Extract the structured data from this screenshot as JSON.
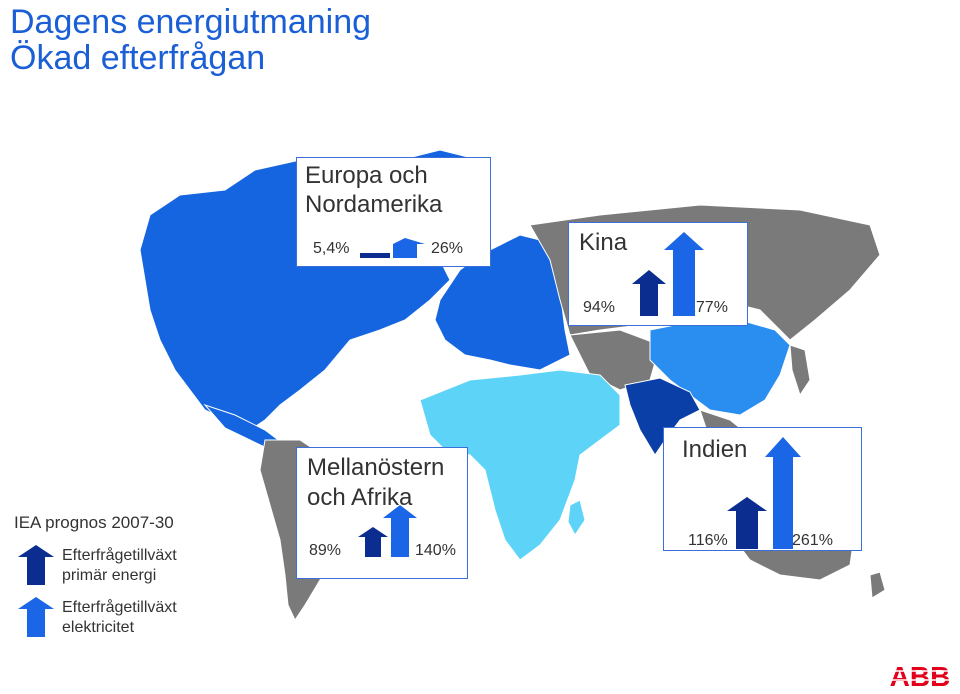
{
  "header": {
    "title_line1": "Dagens energiutmaning",
    "title_line2": "Ökad efterfrågan"
  },
  "colors": {
    "primary_energy": "#0a2d8f",
    "electricity": "#1a66e6",
    "europe_na_region": "#1565e0",
    "china_region": "#2a8df0",
    "india_region": "#0a3fa8",
    "mena_region": "#5cd3f7",
    "other_regions": "#7a7a7a",
    "logo": "#e2001a"
  },
  "regions": [
    {
      "name": "Europa och Nordamerika",
      "title_lines": [
        "Europa och",
        "Nordamerika"
      ],
      "primary_energy": "5,4%",
      "electricity": "26%",
      "primary_energy_value": 5.4,
      "electricity_value": 26
    },
    {
      "name": "Kina",
      "title_lines": [
        "Kina"
      ],
      "primary_energy": "94%",
      "electricity": "177%",
      "primary_energy_value": 94,
      "electricity_value": 177
    },
    {
      "name": "Mellanöstern och Afrika",
      "title_lines": [
        "Mellanöstern",
        "och Afrika"
      ],
      "primary_energy": "89%",
      "electricity": "140%",
      "primary_energy_value": 89,
      "electricity_value": 140
    },
    {
      "name": "Indien",
      "title_lines": [
        "Indien"
      ],
      "primary_energy": "116%",
      "electricity": "261%",
      "primary_energy_value": 116,
      "electricity_value": 261
    }
  ],
  "legend": {
    "heading": "IEA prognos 2007-30",
    "primary_line1": "Efterfrågetillväxt",
    "primary_line2": "primär energi",
    "electricity_line1": "Efterfrågetillväxt",
    "electricity_line2": "elektricitet"
  },
  "logo": {
    "text": "ABB"
  }
}
